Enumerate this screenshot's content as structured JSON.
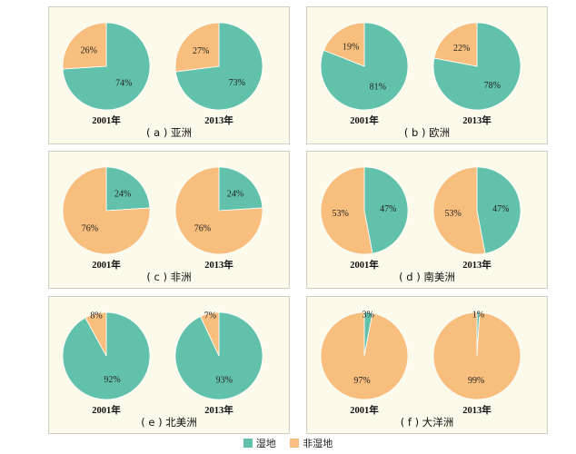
{
  "colors": {
    "wetland": "#62c1aa",
    "nonwetland": "#f7be7e"
  },
  "legend": {
    "wetland": "湿地",
    "nonwetland": "非湿地"
  },
  "chart_data": [
    {
      "type": "pie",
      "title": "( a ) 亚洲",
      "pies": [
        {
          "year": "2001年",
          "wetland": 74,
          "nonwetland": 26,
          "wl": "74%",
          "nl": "26%"
        },
        {
          "year": "2013年",
          "wetland": 73,
          "nonwetland": 27,
          "wl": "73%",
          "nl": "27%"
        }
      ]
    },
    {
      "type": "pie",
      "title": "( b ) 欧洲",
      "pies": [
        {
          "year": "2001年",
          "wetland": 81,
          "nonwetland": 19,
          "wl": "81%",
          "nl": "19%"
        },
        {
          "year": "2013年",
          "wetland": 78,
          "nonwetland": 22,
          "wl": "78%",
          "nl": "22%"
        }
      ]
    },
    {
      "type": "pie",
      "title": "( c ) 非洲",
      "pies": [
        {
          "year": "2001年",
          "wetland": 24,
          "nonwetland": 76,
          "wl": "24%",
          "nl": "76%"
        },
        {
          "year": "2013年",
          "wetland": 24,
          "nonwetland": 76,
          "wl": "24%",
          "nl": "76%"
        }
      ]
    },
    {
      "type": "pie",
      "title": "( d ) 南美洲",
      "pies": [
        {
          "year": "2001年",
          "wetland": 47,
          "nonwetland": 53,
          "wl": "47%",
          "nl": "53%"
        },
        {
          "year": "2013年",
          "wetland": 47,
          "nonwetland": 53,
          "wl": "47%",
          "nl": "53%"
        }
      ]
    },
    {
      "type": "pie",
      "title": "( e ) 北美洲",
      "pies": [
        {
          "year": "2001年",
          "wetland": 92,
          "nonwetland": 8,
          "wl": "92%",
          "nl": "8%"
        },
        {
          "year": "2013年",
          "wetland": 93,
          "nonwetland": 7,
          "wl": "93%",
          "nl": "7%"
        }
      ]
    },
    {
      "type": "pie",
      "title": "( f ) 大洋洲",
      "pies": [
        {
          "year": "2001年",
          "wetland": 3,
          "nonwetland": 97,
          "wl": "3%",
          "nl": "97%"
        },
        {
          "year": "2013年",
          "wetland": 1,
          "nonwetland": 99,
          "wl": "1%",
          "nl": "99%"
        }
      ]
    }
  ]
}
